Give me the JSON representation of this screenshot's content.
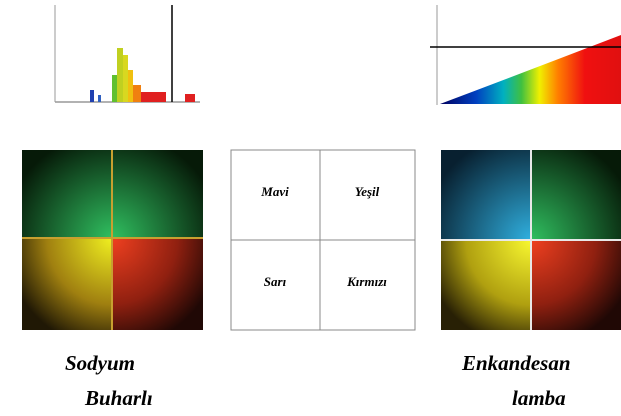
{
  "grid": {
    "cells": [
      [
        "Mavi",
        "Yeşil"
      ],
      [
        "Sarı",
        "Kırmızı"
      ]
    ]
  },
  "captions": {
    "left": [
      "Sodyum",
      "Buharlı"
    ],
    "right": [
      "Enkandesan",
      "lamba"
    ]
  }
}
